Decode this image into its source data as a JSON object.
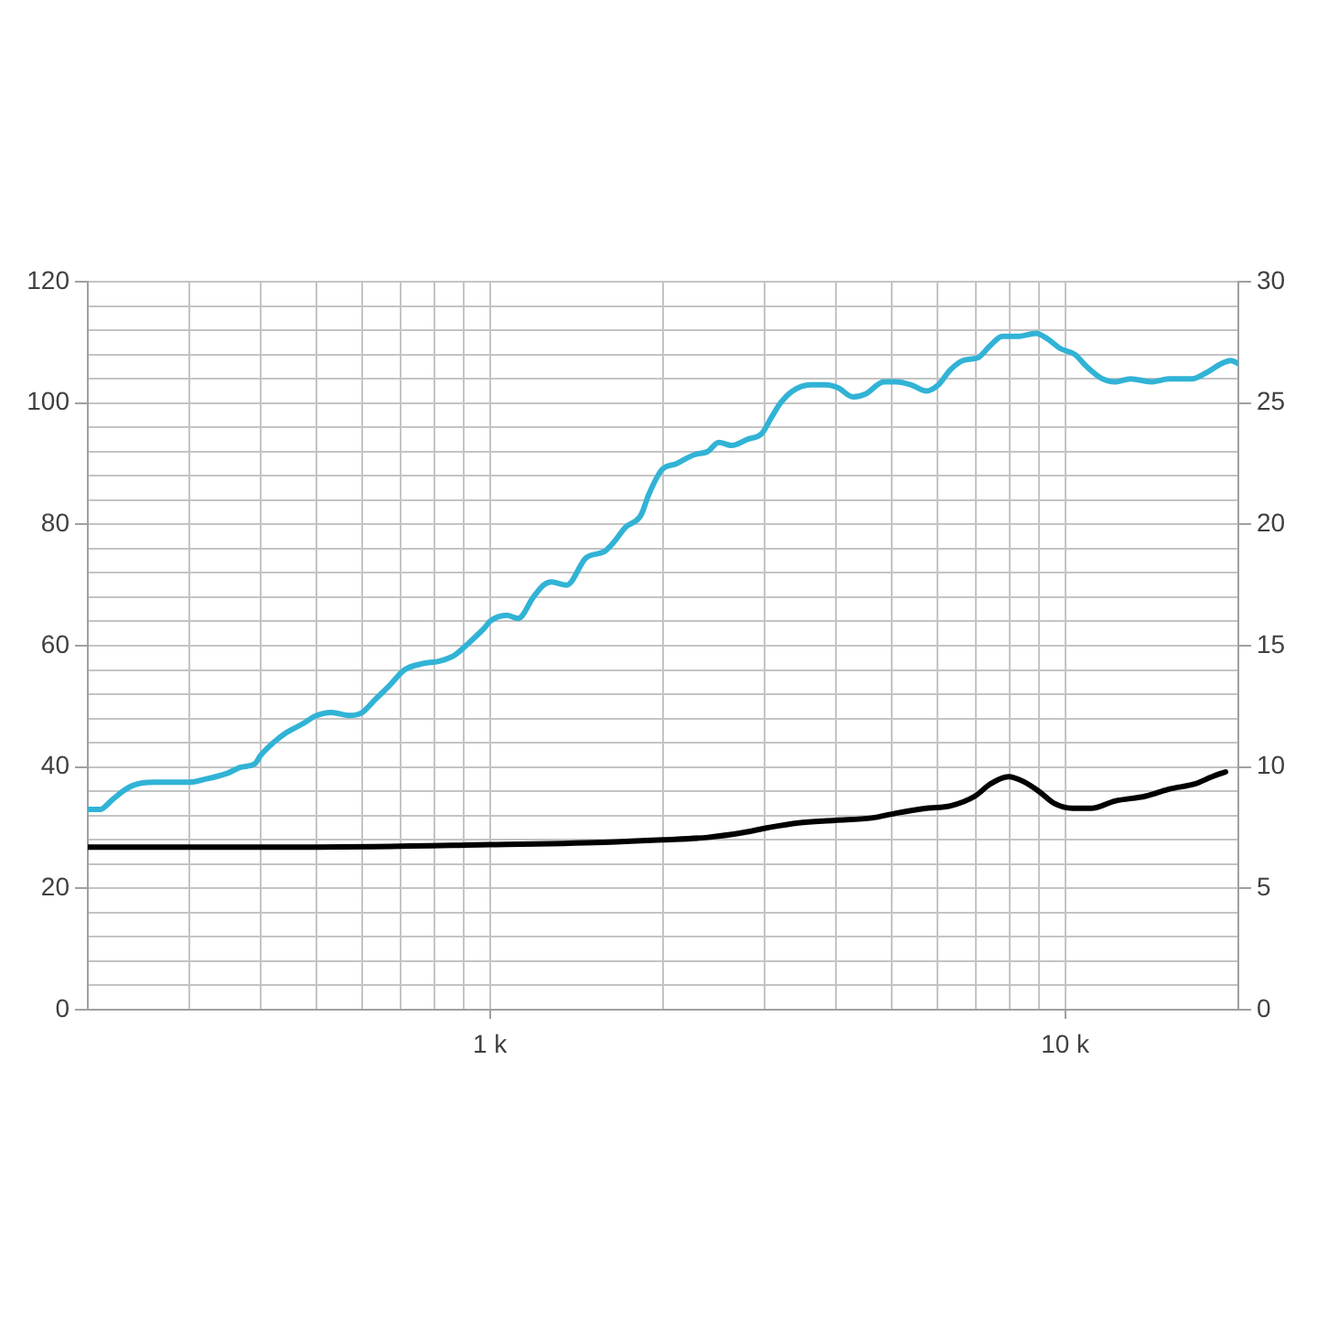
{
  "chart_data": {
    "type": "line",
    "log": "x",
    "grid": true,
    "marker": "none",
    "line_style": "solid",
    "xlim": [
      200,
      20000
    ],
    "xticks": [
      {
        "value": 200,
        "label": null
      },
      {
        "value": 300,
        "label": null
      },
      {
        "value": 400,
        "label": null
      },
      {
        "value": 500,
        "label": null
      },
      {
        "value": 600,
        "label": null
      },
      {
        "value": 700,
        "label": null
      },
      {
        "value": 800,
        "label": null
      },
      {
        "value": 900,
        "label": null
      },
      {
        "value": 1000,
        "label": "1 k"
      },
      {
        "value": 2000,
        "label": null
      },
      {
        "value": 3000,
        "label": null
      },
      {
        "value": 4000,
        "label": null
      },
      {
        "value": 5000,
        "label": null
      },
      {
        "value": 6000,
        "label": null
      },
      {
        "value": 7000,
        "label": null
      },
      {
        "value": 8000,
        "label": null
      },
      {
        "value": 9000,
        "label": null
      },
      {
        "value": 10000,
        "label": "10 k"
      }
    ],
    "ylim": [
      0,
      120
    ],
    "yticks": [
      0,
      {
        "value": 4,
        "label": null
      },
      {
        "value": 8,
        "label": null
      },
      {
        "value": 12,
        "label": null
      },
      {
        "value": 16,
        "label": null
      },
      20,
      {
        "value": 24,
        "label": null
      },
      {
        "value": 28,
        "label": null
      },
      {
        "value": 32,
        "label": null
      },
      {
        "value": 36,
        "label": null
      },
      40,
      {
        "value": 44,
        "label": null
      },
      {
        "value": 48,
        "label": null
      },
      {
        "value": 52,
        "label": null
      },
      {
        "value": 56,
        "label": null
      },
      60,
      {
        "value": 64,
        "label": null
      },
      {
        "value": 68,
        "label": null
      },
      {
        "value": 72,
        "label": null
      },
      {
        "value": 76,
        "label": null
      },
      80,
      {
        "value": 84,
        "label": null
      },
      {
        "value": 88,
        "label": null
      },
      {
        "value": 92,
        "label": null
      },
      {
        "value": 96,
        "label": null
      },
      100,
      {
        "value": 104,
        "label": null
      },
      {
        "value": 108,
        "label": null
      },
      {
        "value": 112,
        "label": null
      },
      {
        "value": 116,
        "label": null
      },
      120
    ],
    "y2lim": [
      0,
      30
    ],
    "y2ticks": [
      0,
      5,
      10,
      15,
      20,
      25,
      30
    ],
    "series": [
      {
        "color": "#31b3d6",
        "x": [
          200,
          210,
          220,
          230,
          240,
          260,
          270,
          280,
          300,
          320,
          350,
          370,
          390,
          400,
          420,
          440,
          470,
          500,
          530,
          570,
          600,
          630,
          670,
          710,
          760,
          820,
          870,
          920,
          980,
          1000,
          1070,
          1120,
          1190,
          1240,
          1280,
          1360,
          1470,
          1580,
          1640,
          1720,
          1830,
          1890,
          1990,
          2110,
          2270,
          2390,
          2500,
          2630,
          2800,
          2970,
          3080,
          3200,
          3360,
          3610,
          3840,
          4030,
          4280,
          4500,
          4840,
          5080,
          5400,
          5740,
          6020,
          6320,
          6640,
          7060,
          7410,
          7780,
          8270,
          8900,
          9340,
          9800,
          10400,
          10900,
          11600,
          12200,
          13000,
          14100,
          15200,
          16600,
          17600,
          18700,
          19400,
          20000
        ],
        "values": [
          33,
          33,
          34.5,
          36,
          37,
          37.5,
          37.5,
          37.5,
          37.5,
          38,
          39,
          40,
          40.5,
          42,
          44,
          45.5,
          47,
          48.5,
          49,
          48.5,
          49,
          51,
          53.5,
          56,
          57,
          57.5,
          58.5,
          60.5,
          63,
          64,
          65,
          64.5,
          68,
          70,
          70.5,
          70,
          74.5,
          75.5,
          77,
          79.5,
          81.5,
          85,
          89,
          90,
          91.5,
          92,
          93.5,
          93,
          94,
          95,
          97.5,
          100,
          102,
          103,
          103,
          102.5,
          101,
          101.5,
          103.5,
          103.5,
          103,
          102,
          103,
          105.5,
          107,
          107.5,
          109.5,
          111,
          111,
          111.5,
          110.5,
          109,
          108,
          106,
          104,
          103.5,
          104,
          103.5,
          104,
          104,
          105,
          106.5,
          107,
          106.5
        ]
      },
      {
        "color": "#000000",
        "axis": "y2",
        "x": [
          200,
          500,
          1000,
          1580,
          2000,
          2390,
          2760,
          3040,
          3440,
          3980,
          4610,
          5080,
          5740,
          6320,
          6970,
          7410,
          7970,
          8470,
          9000,
          9570,
          10300,
          11100,
          12200,
          13800,
          15200,
          16800,
          18000,
          19000
        ],
        "values": [
          6.7,
          6.7,
          6.8,
          6.9,
          7.0,
          7.1,
          7.3,
          7.5,
          7.7,
          7.8,
          7.9,
          8.1,
          8.3,
          8.4,
          8.8,
          9.3,
          9.6,
          9.4,
          9.0,
          8.5,
          8.3,
          8.3,
          8.6,
          8.8,
          9.1,
          9.3,
          9.6,
          9.8
        ]
      }
    ]
  }
}
